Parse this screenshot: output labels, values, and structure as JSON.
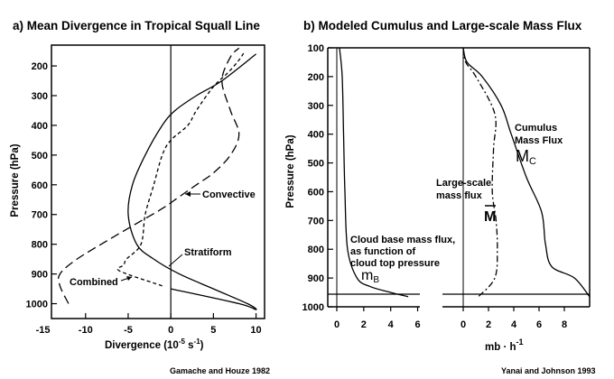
{
  "chart_data": [
    {
      "type": "line",
      "title": "a) Mean Divergence in Tropical Squall Line",
      "xlabel": "Divergence (10",
      "xlabel_exp": "-5",
      "xlabel_unit": " s",
      "xlabel_unit_exp": "-1",
      "xlabel_close": ")",
      "ylabel": "Pressure (hPa)",
      "xlim": [
        -14,
        11
      ],
      "ylim": [
        1050,
        130
      ],
      "xticks": [
        -15,
        -10,
        -5,
        0,
        5,
        10
      ],
      "xtick_labels": [
        "-15",
        "-10",
        "-5",
        "0",
        "5",
        "10"
      ],
      "yticks": [
        200,
        300,
        400,
        500,
        600,
        700,
        800,
        900,
        1000
      ],
      "ytick_labels": [
        "200",
        "300",
        "400",
        "500",
        "600",
        "700",
        "800",
        "900",
        "1000"
      ],
      "series": [
        {
          "name": "Stratiform",
          "style": "solid",
          "x": [
            0,
            8,
            10,
            9,
            5,
            1,
            -2,
            -4,
            -5,
            -4.5,
            -3,
            -1,
            0.5,
            3,
            6,
            10
          ],
          "y": [
            950,
            1000,
            1020,
            1000,
            950,
            900,
            850,
            800,
            700,
            600,
            500,
            400,
            350,
            300,
            250,
            160
          ]
        },
        {
          "name": "Convective",
          "style": "long-dash",
          "x": [
            -12,
            -13,
            -13,
            -11,
            -7,
            -4,
            -1,
            1,
            3,
            5,
            7,
            8,
            7,
            6,
            7,
            8
          ],
          "y": [
            1000,
            940,
            900,
            850,
            780,
            730,
            680,
            640,
            600,
            560,
            500,
            430,
            350,
            250,
            170,
            140
          ]
        },
        {
          "name": "Combined",
          "style": "short-dash",
          "x": [
            -1,
            -6,
            -5.5,
            -5.2,
            -3.5,
            -3,
            -2,
            -1,
            0,
            2,
            3,
            5,
            6.8,
            8,
            8.7
          ],
          "y": [
            940,
            890,
            870,
            850,
            800,
            700,
            600,
            500,
            450,
            400,
            350,
            270,
            220,
            180,
            150
          ]
        }
      ],
      "annotations": [
        "Convective",
        "Stratiform",
        "Combined"
      ],
      "credit": "Gamache and Houze 1982"
    },
    {
      "type": "line",
      "title": "b) Modeled Cumulus and Large-scale Mass Flux",
      "xlabel": "mb · h",
      "xlabel_exp": "-1",
      "ylabel": "Pressure (hPa)",
      "ylim": [
        1000,
        100
      ],
      "yticks": [
        100,
        200,
        300,
        400,
        500,
        600,
        700,
        800,
        900,
        1000
      ],
      "ytick_labels": [
        "100",
        "200",
        "300",
        "400",
        "500",
        "600",
        "700",
        "800",
        "900",
        "1000"
      ],
      "left_panel": {
        "xlim": [
          0,
          6.5
        ],
        "xticks": [
          0,
          2,
          4,
          6
        ],
        "xtick_labels": [
          "0",
          "2",
          "4",
          "6"
        ],
        "series": [
          {
            "name": "Cloud base mass flux, as function of cloud top pressure",
            "symbol": "m",
            "style": "solid",
            "x": [
              0.2,
              0.4,
              0.5,
              0.6,
              0.8,
              1.5,
              2.5,
              4.0,
              5.3
            ],
            "y": [
              100,
              200,
              400,
              600,
              800,
              900,
              930,
              950,
              965
            ]
          }
        ]
      },
      "right_panel": {
        "xlim": [
          0,
          10
        ],
        "xticks": [
          0,
          2,
          4,
          6,
          8
        ],
        "xtick_labels": [
          "0",
          "2",
          "4",
          "6",
          "8"
        ],
        "series": [
          {
            "name": "Cumulus Mass Flux",
            "symbol": "M",
            "style": "solid",
            "x": [
              0,
              0.3,
              1.5,
              3,
              3.8,
              5,
              6.2,
              6.5,
              7,
              8.8,
              10
            ],
            "y": [
              100,
              150,
              200,
              300,
              400,
              550,
              670,
              780,
              860,
              900,
              965
            ]
          },
          {
            "name": "Large-scale mass flux",
            "symbol": "M",
            "style": "dash-dot",
            "x": [
              0,
              0.2,
              1.0,
              2.5,
              2.4,
              2.3,
              2.6,
              2.7,
              2.5,
              1.2
            ],
            "y": [
              100,
              150,
              200,
              330,
              450,
              600,
              700,
              800,
              900,
              965
            ]
          }
        ]
      },
      "labels": {
        "cumulus_1": "Cumulus",
        "cumulus_2": "Mass Flux",
        "cumulus_sym": "M",
        "cumulus_sub": "C",
        "large_1": "Large-scale",
        "large_2": "mass flux",
        "large_sym": "M",
        "cb_1": "Cloud base mass flux,",
        "cb_2": "as function of",
        "cb_3": "cloud top pressure",
        "cb_sym": "m",
        "cb_sub": "B"
      },
      "credit": "Yanai and Johnson 1993"
    }
  ]
}
